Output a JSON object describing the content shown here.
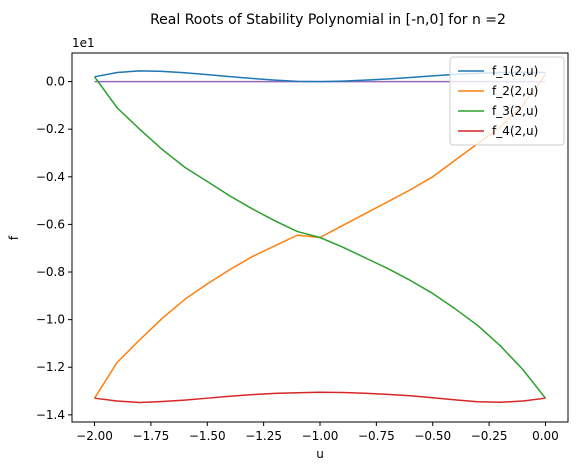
{
  "chart_data": {
    "type": "line",
    "title": "Real Roots of Stability Polynomial in [-n,0] for n =2",
    "xlabel": "u",
    "ylabel": "f",
    "offset_label": "1e1",
    "xlim": [
      -2.1,
      0.1
    ],
    "ylim": [
      -14.3,
      1.2
    ],
    "xticks": [
      -2.0,
      -1.75,
      -1.5,
      -1.25,
      -1.0,
      -0.75,
      -0.5,
      -0.25,
      0.0
    ],
    "xtick_labels": [
      "−2.00",
      "−1.75",
      "−1.50",
      "−1.25",
      "−1.00",
      "−0.75",
      "−0.50",
      "−0.25",
      "0.00"
    ],
    "yticks": [
      0,
      -2,
      -4,
      -6,
      -8,
      -10,
      -12,
      -14
    ],
    "ytick_labels": [
      "0.0",
      "−0.2",
      "−0.4",
      "−0.6",
      "−0.8",
      "−1.0",
      "−1.2",
      "−1.4"
    ],
    "grid": false,
    "legend_position": "top-right",
    "x": [
      -2.0,
      -1.9,
      -1.8,
      -1.7,
      -1.6,
      -1.5,
      -1.4,
      -1.3,
      -1.2,
      -1.1,
      -1.0,
      -0.9,
      -0.8,
      -0.7,
      -0.6,
      -0.5,
      -0.4,
      -0.3,
      -0.2,
      -0.1,
      0.0
    ],
    "series": [
      {
        "name": "f_1(2,u)",
        "color": "#1f77b4",
        "values": [
          0.2,
          0.38,
          0.45,
          0.43,
          0.37,
          0.29,
          0.21,
          0.13,
          0.06,
          0.01,
          0.0,
          0.02,
          0.06,
          0.11,
          0.17,
          0.24,
          0.3,
          0.35,
          0.38,
          0.39,
          0.38
        ]
      },
      {
        "name": "f_2(2,u)",
        "color": "#ff7f0e",
        "values": [
          -13.3,
          -11.8,
          -10.85,
          -9.95,
          -9.15,
          -8.5,
          -7.9,
          -7.35,
          -6.9,
          -6.45,
          -6.55,
          -6.05,
          -5.55,
          -5.05,
          -4.55,
          -4.0,
          -3.3,
          -2.6,
          -1.9,
          -1.0,
          0.3
        ]
      },
      {
        "name": "f_3(2,u)",
        "color": "#2ca02c",
        "values": [
          0.2,
          -1.1,
          -2.0,
          -2.85,
          -3.6,
          -4.2,
          -4.8,
          -5.35,
          -5.85,
          -6.3,
          -6.55,
          -6.95,
          -7.4,
          -7.85,
          -8.35,
          -8.9,
          -9.55,
          -10.25,
          -11.1,
          -12.1,
          -13.3
        ]
      },
      {
        "name": "f_4(2,u)",
        "color": "#d62728",
        "values": [
          -13.3,
          -13.42,
          -13.48,
          -13.44,
          -13.38,
          -13.3,
          -13.22,
          -13.15,
          -13.1,
          -13.07,
          -13.05,
          -13.06,
          -13.09,
          -13.14,
          -13.2,
          -13.28,
          -13.37,
          -13.45,
          -13.47,
          -13.42,
          -13.3
        ]
      },
      {
        "name": "",
        "color": "#9467bd",
        "values": [
          0.0,
          0.0,
          0.0,
          0.0,
          0.0,
          0.0,
          0.0,
          0.0,
          0.0,
          0.0,
          0.0,
          0.0,
          0.0,
          0.0,
          0.0,
          0.0,
          0.0,
          0.0,
          0.0,
          0.0,
          0.0
        ]
      }
    ]
  }
}
